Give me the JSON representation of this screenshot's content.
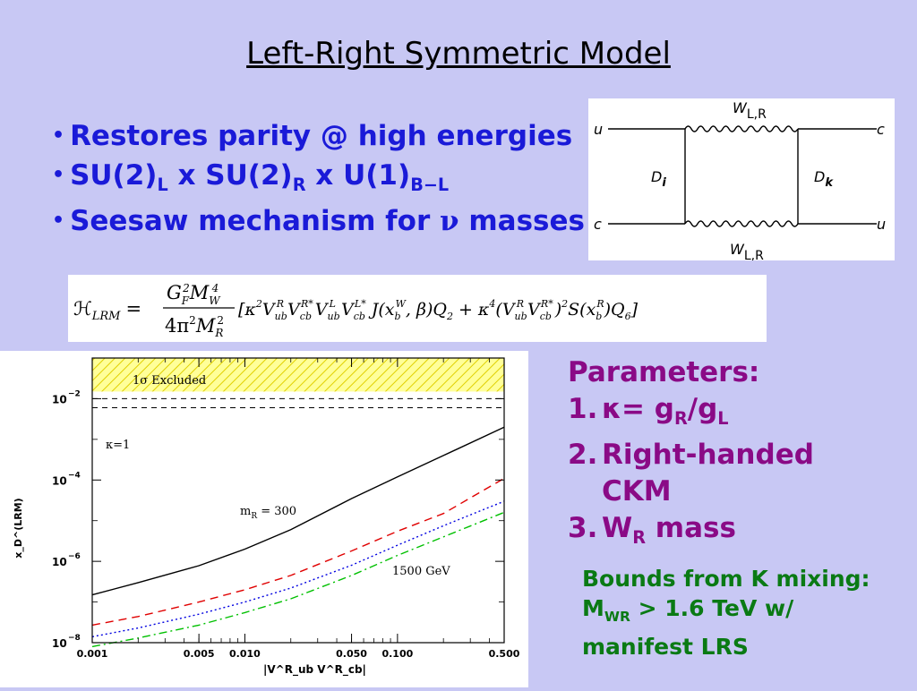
{
  "slide": {
    "title": "Left-Right Symmetric Model",
    "bullets": [
      {
        "text": "Restores parity @ high energies"
      },
      {
        "a": "SU(2)",
        "a_sub": "L",
        "b": " x SU(2)",
        "b_sub": "R",
        "c": " x U(1)",
        "c_sub": "B−L"
      },
      {
        "a": "Seesaw mechanism for ",
        "nu": "ν",
        "b": " masses"
      }
    ],
    "diagram": {
      "top_boson": "W",
      "top_boson_sub": "L,R",
      "bottom_boson": "W",
      "bottom_boson_sub": "L,R",
      "left_top": "u",
      "right_top": "c",
      "left_bottom": "c",
      "right_bottom": "u",
      "left_prop": "D",
      "left_prop_idx": "i",
      "right_prop": "D",
      "right_prop_idx": "k"
    },
    "formula": {
      "lhs": "ℋ",
      "lhs_sub": "LRM",
      "num": "G",
      "num_sub": "F",
      "num_sup": "2",
      "num2": "M",
      "num2_sub": "W",
      "num2_sup": "4",
      "den": "4π",
      "den_sup": "2",
      "den2": "M",
      "den2_sub": "R",
      "den2_sup": "2",
      "body1": "[κ",
      "body1_sup": "2",
      "t1": "V",
      "t1_sub": "ub",
      "t1_sup": "R",
      "t2": "V",
      "t2_sub": "cb",
      "t2_sup": "R*",
      "t3": "V",
      "t3_sub": "ub",
      "t3_sup": "L",
      "t4": "V",
      "t4_sub": "cb",
      "t4_sup": "L*",
      "j": " J(x",
      "j_sub": "b",
      "j_sup": "W",
      "j2": ", β)Q",
      "j2_sub": "2",
      "plus": " + κ",
      "plus_sup": "4",
      "p1": "(V",
      "p1_sub": "ub",
      "p1_sup": "R",
      "p2": "V",
      "p2_sub": "cb",
      "p2_sup": "R*",
      "p3": ")",
      "p3_sup": "2",
      "s": "S(x",
      "s_sub": "b",
      "s_sup": "R",
      "s2": ")Q",
      "s2_sub": "6",
      "end": "]"
    },
    "parameters": {
      "heading": "Parameters:",
      "items": [
        {
          "num": "1.",
          "a": "κ= g",
          "a_sub": "R",
          "b": "/g",
          "b_sub": "L"
        },
        {
          "num": "2.",
          "a": "Right-handed",
          "cont": "CKM"
        },
        {
          "num": "3.",
          "a": "W",
          "a_sub": "R",
          "b": " mass"
        }
      ]
    },
    "bounds": {
      "line1": "Bounds from K mixing:",
      "l2a": "M",
      "l2a_sub": "WR",
      "l2b": " > 1.6 TeV w/",
      "line3": "manifest LRS"
    }
  },
  "chart_data": {
    "type": "line",
    "x_scale": "log",
    "y_scale": "log",
    "xlim": [
      0.001,
      0.5
    ],
    "ylim": [
      1e-08,
      0.1
    ],
    "xlabel": "|V^R_ub V^R_cb|",
    "ylabel": "x_D^(LRM)",
    "x_ticks": [
      0.001,
      0.005,
      0.01,
      0.05,
      0.1,
      0.5
    ],
    "x_tick_labels": [
      "0.001",
      "0.005",
      "0.010",
      "0.050",
      "0.100",
      "0.500"
    ],
    "y_ticks": [
      1e-08,
      1e-06,
      0.0001,
      0.01
    ],
    "y_tick_labels": [
      "10",
      "10",
      "10",
      "10"
    ],
    "y_tick_exps": [
      "−8",
      "−6",
      "−4",
      "−2"
    ],
    "excluded_label": "1σ Excluded",
    "excluded_range": [
      0.015,
      0.1
    ],
    "dashed_lines_y": [
      0.01,
      0.006
    ],
    "annotations": {
      "kappa": "κ=1",
      "mr": "m",
      "mr_sub": "R",
      "mr_val": " = 300",
      "gev": "1500 GeV"
    },
    "series": [
      {
        "color": "#000000",
        "style": "solid",
        "x": [
          0.001,
          0.002,
          0.005,
          0.01,
          0.02,
          0.05,
          0.1,
          0.2,
          0.5
        ],
        "y": [
          1.5e-07,
          3e-07,
          7.8e-07,
          2e-06,
          6e-06,
          3.5e-05,
          0.00012,
          0.0004,
          0.002
        ]
      },
      {
        "color": "#e00000",
        "style": "dashed",
        "x": [
          0.001,
          0.002,
          0.005,
          0.01,
          0.02,
          0.05,
          0.1,
          0.2,
          0.5
        ],
        "y": [
          2.7e-08,
          4.4e-08,
          1e-07,
          2e-07,
          4.5e-07,
          1.8e-06,
          5.5e-06,
          1.5e-05,
          0.00011
        ]
      },
      {
        "color": "#0000e0",
        "style": "dotted",
        "x": [
          0.001,
          0.002,
          0.005,
          0.01,
          0.02,
          0.05,
          0.1,
          0.2,
          0.5
        ],
        "y": [
          1.4e-08,
          2.3e-08,
          5e-08,
          1e-07,
          2.2e-07,
          8e-07,
          2.5e-06,
          7.5e-06,
          3e-05
        ]
      },
      {
        "color": "#00c000",
        "style": "dashdot",
        "x": [
          0.001,
          0.002,
          0.005,
          0.01,
          0.02,
          0.05,
          0.1,
          0.2,
          0.5
        ],
        "y": [
          8e-09,
          1.3e-08,
          2.7e-08,
          5.5e-08,
          1.2e-07,
          4.5e-07,
          1.4e-06,
          4e-06,
          1.6e-05
        ]
      }
    ]
  }
}
